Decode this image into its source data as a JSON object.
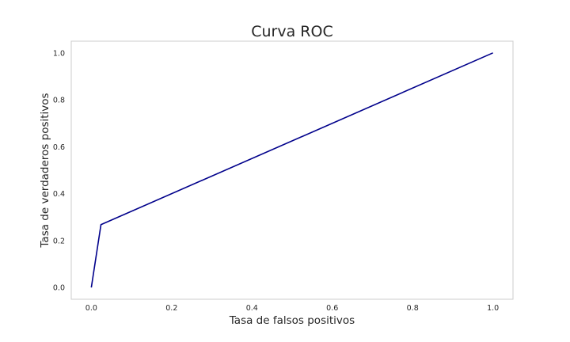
{
  "chart_data": {
    "type": "line",
    "title": "Curva ROC",
    "xlabel": "Tasa de falsos positivos",
    "ylabel": "Tasa de verdaderos positivos",
    "xlim": [
      -0.05,
      1.05
    ],
    "ylim": [
      -0.05,
      1.05
    ],
    "xticks": [
      "0.0",
      "0.2",
      "0.4",
      "0.6",
      "0.8",
      "1.0"
    ],
    "yticks": [
      "0.0",
      "0.2",
      "0.4",
      "0.6",
      "0.8",
      "1.0"
    ],
    "grid": false,
    "series": [
      {
        "color": "#00008b",
        "x": [
          0.0,
          0.024,
          1.0
        ],
        "y": [
          0.0,
          0.268,
          1.0
        ]
      }
    ]
  }
}
